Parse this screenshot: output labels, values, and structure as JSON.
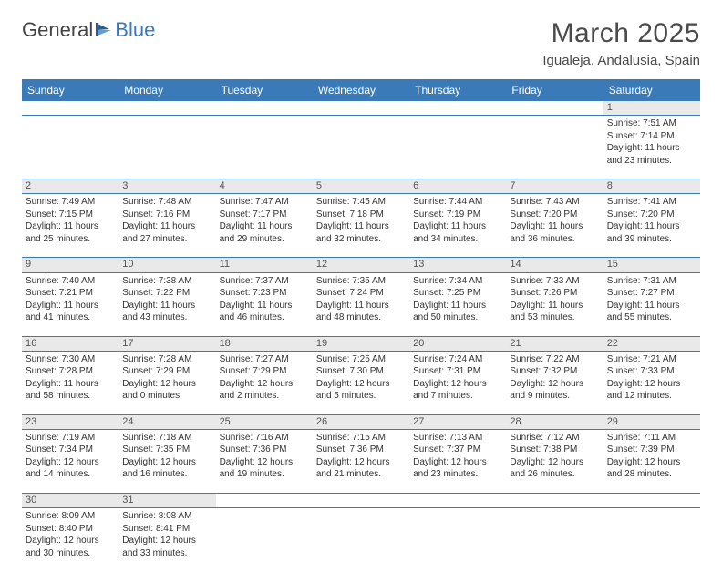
{
  "logo": {
    "textDark": "General",
    "textBlue": "Blue"
  },
  "title": "March 2025",
  "location": "Igualeja, Andalusia, Spain",
  "colors": {
    "headerBg": "#3a7ab8",
    "headerText": "#ffffff",
    "dayNumBg": "#e9e9e9",
    "dayNumText": "#555555",
    "bodyText": "#333333",
    "rule": "#3a7ab8"
  },
  "dayHeaders": [
    "Sunday",
    "Monday",
    "Tuesday",
    "Wednesday",
    "Thursday",
    "Friday",
    "Saturday"
  ],
  "weeks": [
    [
      null,
      null,
      null,
      null,
      null,
      null,
      {
        "n": "1",
        "sr": "Sunrise: 7:51 AM",
        "ss": "Sunset: 7:14 PM",
        "d1": "Daylight: 11 hours",
        "d2": "and 23 minutes."
      }
    ],
    [
      {
        "n": "2",
        "sr": "Sunrise: 7:49 AM",
        "ss": "Sunset: 7:15 PM",
        "d1": "Daylight: 11 hours",
        "d2": "and 25 minutes."
      },
      {
        "n": "3",
        "sr": "Sunrise: 7:48 AM",
        "ss": "Sunset: 7:16 PM",
        "d1": "Daylight: 11 hours",
        "d2": "and 27 minutes."
      },
      {
        "n": "4",
        "sr": "Sunrise: 7:47 AM",
        "ss": "Sunset: 7:17 PM",
        "d1": "Daylight: 11 hours",
        "d2": "and 29 minutes."
      },
      {
        "n": "5",
        "sr": "Sunrise: 7:45 AM",
        "ss": "Sunset: 7:18 PM",
        "d1": "Daylight: 11 hours",
        "d2": "and 32 minutes."
      },
      {
        "n": "6",
        "sr": "Sunrise: 7:44 AM",
        "ss": "Sunset: 7:19 PM",
        "d1": "Daylight: 11 hours",
        "d2": "and 34 minutes."
      },
      {
        "n": "7",
        "sr": "Sunrise: 7:43 AM",
        "ss": "Sunset: 7:20 PM",
        "d1": "Daylight: 11 hours",
        "d2": "and 36 minutes."
      },
      {
        "n": "8",
        "sr": "Sunrise: 7:41 AM",
        "ss": "Sunset: 7:20 PM",
        "d1": "Daylight: 11 hours",
        "d2": "and 39 minutes."
      }
    ],
    [
      {
        "n": "9",
        "sr": "Sunrise: 7:40 AM",
        "ss": "Sunset: 7:21 PM",
        "d1": "Daylight: 11 hours",
        "d2": "and 41 minutes."
      },
      {
        "n": "10",
        "sr": "Sunrise: 7:38 AM",
        "ss": "Sunset: 7:22 PM",
        "d1": "Daylight: 11 hours",
        "d2": "and 43 minutes."
      },
      {
        "n": "11",
        "sr": "Sunrise: 7:37 AM",
        "ss": "Sunset: 7:23 PM",
        "d1": "Daylight: 11 hours",
        "d2": "and 46 minutes."
      },
      {
        "n": "12",
        "sr": "Sunrise: 7:35 AM",
        "ss": "Sunset: 7:24 PM",
        "d1": "Daylight: 11 hours",
        "d2": "and 48 minutes."
      },
      {
        "n": "13",
        "sr": "Sunrise: 7:34 AM",
        "ss": "Sunset: 7:25 PM",
        "d1": "Daylight: 11 hours",
        "d2": "and 50 minutes."
      },
      {
        "n": "14",
        "sr": "Sunrise: 7:33 AM",
        "ss": "Sunset: 7:26 PM",
        "d1": "Daylight: 11 hours",
        "d2": "and 53 minutes."
      },
      {
        "n": "15",
        "sr": "Sunrise: 7:31 AM",
        "ss": "Sunset: 7:27 PM",
        "d1": "Daylight: 11 hours",
        "d2": "and 55 minutes."
      }
    ],
    [
      {
        "n": "16",
        "sr": "Sunrise: 7:30 AM",
        "ss": "Sunset: 7:28 PM",
        "d1": "Daylight: 11 hours",
        "d2": "and 58 minutes."
      },
      {
        "n": "17",
        "sr": "Sunrise: 7:28 AM",
        "ss": "Sunset: 7:29 PM",
        "d1": "Daylight: 12 hours",
        "d2": "and 0 minutes."
      },
      {
        "n": "18",
        "sr": "Sunrise: 7:27 AM",
        "ss": "Sunset: 7:29 PM",
        "d1": "Daylight: 12 hours",
        "d2": "and 2 minutes."
      },
      {
        "n": "19",
        "sr": "Sunrise: 7:25 AM",
        "ss": "Sunset: 7:30 PM",
        "d1": "Daylight: 12 hours",
        "d2": "and 5 minutes."
      },
      {
        "n": "20",
        "sr": "Sunrise: 7:24 AM",
        "ss": "Sunset: 7:31 PM",
        "d1": "Daylight: 12 hours",
        "d2": "and 7 minutes."
      },
      {
        "n": "21",
        "sr": "Sunrise: 7:22 AM",
        "ss": "Sunset: 7:32 PM",
        "d1": "Daylight: 12 hours",
        "d2": "and 9 minutes."
      },
      {
        "n": "22",
        "sr": "Sunrise: 7:21 AM",
        "ss": "Sunset: 7:33 PM",
        "d1": "Daylight: 12 hours",
        "d2": "and 12 minutes."
      }
    ],
    [
      {
        "n": "23",
        "sr": "Sunrise: 7:19 AM",
        "ss": "Sunset: 7:34 PM",
        "d1": "Daylight: 12 hours",
        "d2": "and 14 minutes."
      },
      {
        "n": "24",
        "sr": "Sunrise: 7:18 AM",
        "ss": "Sunset: 7:35 PM",
        "d1": "Daylight: 12 hours",
        "d2": "and 16 minutes."
      },
      {
        "n": "25",
        "sr": "Sunrise: 7:16 AM",
        "ss": "Sunset: 7:36 PM",
        "d1": "Daylight: 12 hours",
        "d2": "and 19 minutes."
      },
      {
        "n": "26",
        "sr": "Sunrise: 7:15 AM",
        "ss": "Sunset: 7:36 PM",
        "d1": "Daylight: 12 hours",
        "d2": "and 21 minutes."
      },
      {
        "n": "27",
        "sr": "Sunrise: 7:13 AM",
        "ss": "Sunset: 7:37 PM",
        "d1": "Daylight: 12 hours",
        "d2": "and 23 minutes."
      },
      {
        "n": "28",
        "sr": "Sunrise: 7:12 AM",
        "ss": "Sunset: 7:38 PM",
        "d1": "Daylight: 12 hours",
        "d2": "and 26 minutes."
      },
      {
        "n": "29",
        "sr": "Sunrise: 7:11 AM",
        "ss": "Sunset: 7:39 PM",
        "d1": "Daylight: 12 hours",
        "d2": "and 28 minutes."
      }
    ],
    [
      {
        "n": "30",
        "sr": "Sunrise: 8:09 AM",
        "ss": "Sunset: 8:40 PM",
        "d1": "Daylight: 12 hours",
        "d2": "and 30 minutes."
      },
      {
        "n": "31",
        "sr": "Sunrise: 8:08 AM",
        "ss": "Sunset: 8:41 PM",
        "d1": "Daylight: 12 hours",
        "d2": "and 33 minutes."
      },
      null,
      null,
      null,
      null,
      null
    ]
  ]
}
